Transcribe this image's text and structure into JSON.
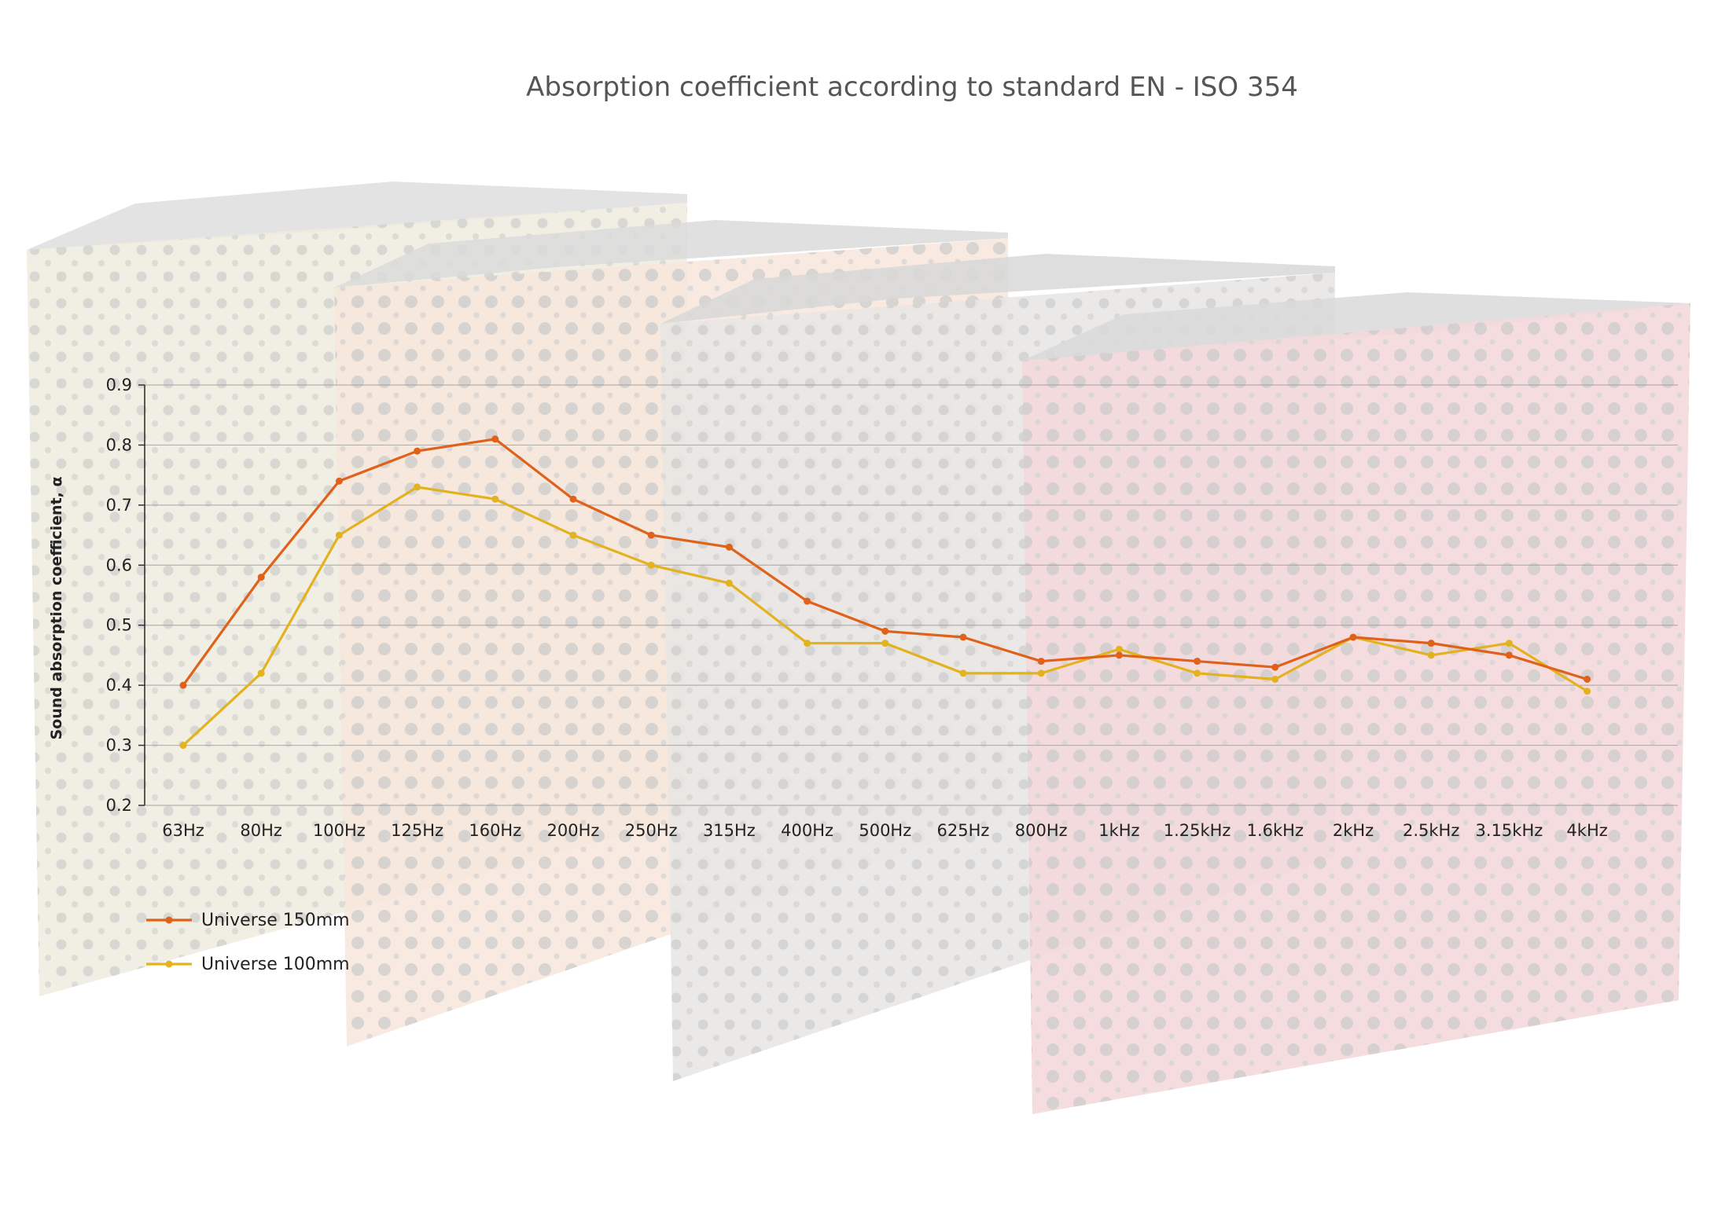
{
  "chart_data": {
    "type": "line",
    "title": "Absorption coefficient according to standard EN - ISO 354",
    "ylabel": "Sound absorption coefficient, α",
    "xlabel": "",
    "ylim": [
      0.2,
      0.9
    ],
    "yticks": [
      "0.2",
      "0.3",
      "0.4",
      "0.5",
      "0.6",
      "0.7",
      "0.8",
      "0.9"
    ],
    "grid": true,
    "legend_position": "bottom-left",
    "categories": [
      "63Hz",
      "80Hz",
      "100Hz",
      "125Hz",
      "160Hz",
      "200Hz",
      "250Hz",
      "315Hz",
      "400Hz",
      "500Hz",
      "625Hz",
      "800Hz",
      "1kHz",
      "1.25kHz",
      "1.6kHz",
      "2kHz",
      "2.5kHz",
      "3.15kHz",
      "4kHz"
    ],
    "series": [
      {
        "name": "Universe 150mm",
        "color": "#e0611a",
        "values": [
          0.4,
          0.58,
          0.74,
          0.79,
          0.81,
          0.71,
          0.65,
          0.63,
          0.54,
          0.49,
          0.48,
          0.44,
          0.45,
          0.44,
          0.43,
          0.48,
          0.47,
          0.45,
          0.41
        ]
      },
      {
        "name": "Universe 100mm",
        "color": "#e3b21f",
        "values": [
          0.3,
          0.42,
          0.65,
          0.73,
          0.71,
          0.65,
          0.6,
          0.57,
          0.47,
          0.47,
          0.42,
          0.42,
          0.46,
          0.42,
          0.41,
          0.48,
          0.45,
          0.47,
          0.39
        ]
      }
    ]
  }
}
